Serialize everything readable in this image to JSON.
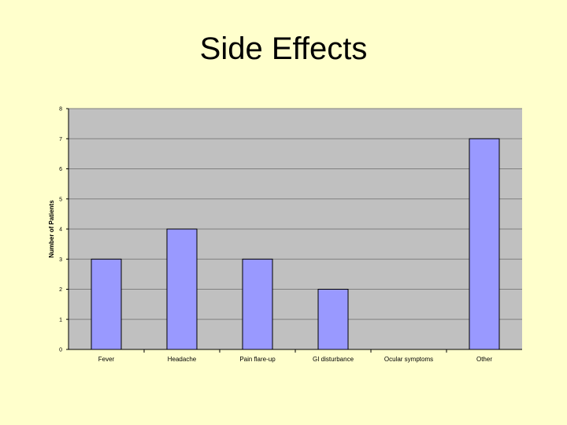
{
  "slide": {
    "title": "Side Effects"
  },
  "colors": {
    "background": "#FFFFCC",
    "plot_area": "#C0C0C0",
    "bar_fill": "#9999FF",
    "bar_stroke": "#000000",
    "gridline": "#808080"
  },
  "chart_data": {
    "type": "bar",
    "title": "Side Effects",
    "xlabel": "",
    "ylabel": "Number of Patients",
    "ylim": [
      0,
      8
    ],
    "yticks": [
      0,
      1,
      2,
      3,
      4,
      5,
      6,
      7,
      8
    ],
    "grid": true,
    "categories": [
      "Fever",
      "Headache",
      "Pain flare-up",
      "GI disturbance",
      "Ocular symptoms",
      "Other"
    ],
    "values": [
      3,
      4,
      3,
      2,
      0,
      7
    ]
  }
}
